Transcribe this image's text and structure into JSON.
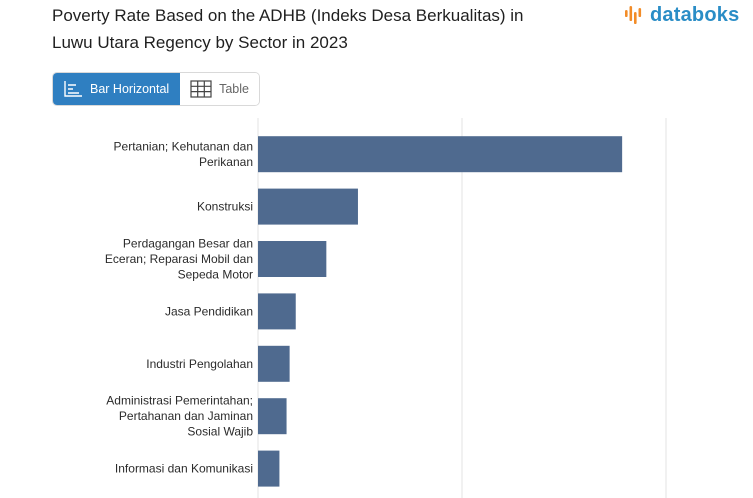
{
  "header": {
    "title_line1": "Poverty Rate Based on the ADHB (Indeks Desa Berkualitas) in",
    "title_line2": "Luwu Utara Regency by Sector in 2023",
    "logo_text": "databoks"
  },
  "view_toggle": {
    "options": [
      {
        "label": "Bar Horizontal",
        "icon": "bar-horizontal-icon",
        "active": true
      },
      {
        "label": "Table",
        "icon": "table-grid-icon",
        "active": false
      }
    ]
  },
  "colors": {
    "bar": "#4f6a8f",
    "accent": "#2f7fc1",
    "logo_orange": "#f28c28",
    "logo_blue": "#2a8dc6"
  },
  "chart_data": {
    "type": "bar",
    "orientation": "horizontal",
    "title": "Poverty Rate Based on the ADHB (Indeks Desa Berkualitas) in Luwu Utara Regency by Sector in 2023",
    "categories": [
      [
        "Pertanian; Kehutanan dan",
        "Perikanan"
      ],
      [
        "Konstruksi"
      ],
      [
        "Perdagangan Besar dan",
        "Eceran; Reparasi Mobil dan",
        "Sepeda Motor"
      ],
      [
        "Jasa Pendidikan"
      ],
      [
        "Industri Pengolahan"
      ],
      [
        "Administrasi Pemerintahan;",
        "Pertahanan dan Jaminan",
        "Sosial Wajib"
      ],
      [
        "Informasi dan Komunikasi"
      ]
    ],
    "values": [
      35.7,
      9.8,
      6.7,
      3.7,
      3.1,
      2.8,
      2.1
    ],
    "xlim": [
      0,
      40
    ],
    "grid": true,
    "xlabel": "",
    "ylabel": ""
  }
}
